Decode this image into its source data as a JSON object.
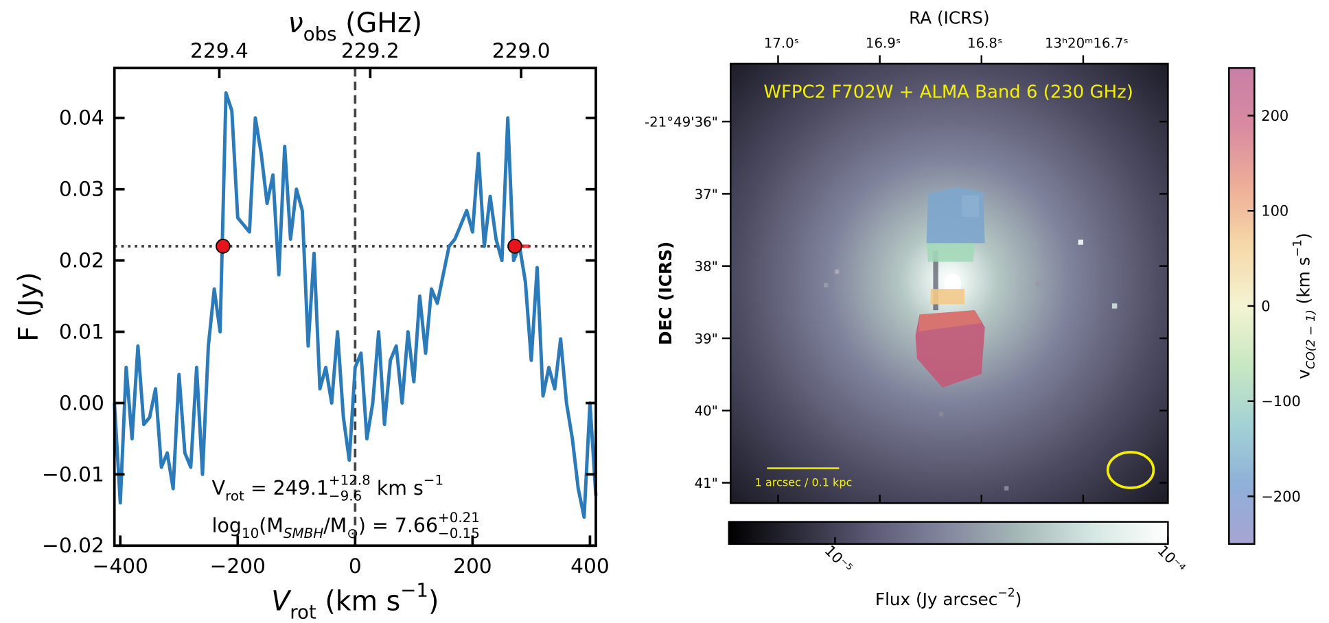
{
  "chart_data": [
    {
      "type": "line",
      "x_label": {
        "parts": [
          {
            "text": "V",
            "style": "italic"
          },
          {
            "text": "rot",
            "style": "sub"
          },
          {
            "text": " (km s"
          },
          {
            "text": "−1",
            "style": "sup"
          },
          {
            "text": ")"
          }
        ]
      },
      "y_label": {
        "parts": [
          {
            "text": "F (Jy)"
          }
        ]
      },
      "x2_label": {
        "parts": [
          {
            "text": "ν",
            "style": "italic"
          },
          {
            "text": "obs",
            "style": "sub"
          },
          {
            "text": " (GHz)"
          }
        ]
      },
      "xlim": [
        -410,
        410
      ],
      "xticks": [
        {
          "value": -400,
          "label": "−400"
        },
        {
          "value": -200,
          "label": "−200"
        },
        0,
        200,
        400
      ],
      "x2lim": [
        229.539,
        228.901
      ],
      "x2ticks": [
        229.4,
        229.2,
        {
          "value": 229.0,
          "label": "229.0"
        }
      ],
      "ylim": [
        -0.02,
        0.047
      ],
      "yticks": [
        {
          "value": -0.02,
          "label": "−0.02"
        },
        {
          "value": -0.01,
          "label": "−0.01"
        },
        {
          "value": 0,
          "label": "0.00"
        },
        0.01,
        0.02,
        0.03,
        0.04
      ],
      "x": [
        -410,
        -400,
        -390,
        -380,
        -370,
        -360,
        -350,
        -340,
        -330,
        -320,
        -310,
        -300,
        -290,
        -280,
        -270,
        -260,
        -250,
        -240,
        -230,
        -220,
        -210,
        -200,
        -190,
        -180,
        -170,
        -160,
        -150,
        -140,
        -130,
        -120,
        -110,
        -100,
        -90,
        -80,
        -70,
        -60,
        -50,
        -40,
        -30,
        -20,
        -10,
        0,
        10,
        20,
        30,
        40,
        50,
        60,
        70,
        80,
        90,
        100,
        110,
        120,
        130,
        140,
        150,
        160,
        170,
        180,
        190,
        200,
        210,
        220,
        230,
        240,
        250,
        260,
        270,
        280,
        290,
        300,
        310,
        320,
        330,
        340,
        350,
        360,
        370,
        380,
        390,
        400,
        410
      ],
      "series": [
        {
          "name": "Spectrum",
          "color": "#2b7bba",
          "values": [
            0.0,
            -0.014,
            0.005,
            -0.005,
            0.008,
            -0.003,
            -0.002,
            0.002,
            -0.009,
            -0.007,
            -0.012,
            0.004,
            -0.007,
            -0.009,
            0.005,
            -0.01,
            0.008,
            0.016,
            0.01,
            0.0435,
            0.041,
            0.026,
            0.025,
            0.024,
            0.04,
            0.035,
            0.028,
            0.032,
            0.018,
            0.036,
            0.023,
            0.03,
            0.027,
            0.008,
            0.021,
            0.002,
            0.005,
            0.0,
            0.01,
            -0.002,
            -0.008,
            0.005,
            0.007,
            -0.005,
            0.0,
            0.01,
            -0.003,
            0.006,
            0.008,
            0.0,
            0.01,
            0.003,
            0.015,
            0.007,
            0.016,
            0.014,
            0.018,
            0.022,
            0.023,
            0.025,
            0.027,
            0.024,
            0.035,
            0.022,
            0.029,
            0.023,
            0.02,
            0.04,
            0.02,
            0.022,
            0.017,
            0.006,
            0.019,
            0.001,
            0.005,
            0.002,
            0.009,
            0.0,
            -0.005,
            -0.012,
            -0.016,
            0.0,
            -0.013
          ]
        }
      ],
      "hline": 0.022,
      "vline": 0,
      "markers": [
        {
          "x": -225,
          "y": 0.022
        },
        {
          "x": 272,
          "y": 0.022,
          "xerr": 25
        }
      ],
      "marker_color": "#e8141c",
      "annotations": [
        {
          "parts": [
            {
              "text": "V"
            },
            {
              "text": "rot",
              "style": "sub"
            },
            {
              "text": " = 249.1"
            },
            {
              "text": "+12.8",
              "style": "sup"
            },
            {
              "text": "−9.6",
              "style": "sub"
            },
            {
              "text": " km s"
            },
            {
              "text": "−1",
              "style": "sup"
            }
          ]
        },
        {
          "parts": [
            {
              "text": "log"
            },
            {
              "text": "10",
              "style": "sub"
            },
            {
              "text": "(M"
            },
            {
              "text": "SMBH",
              "style": "sub italic"
            },
            {
              "text": "/M"
            },
            {
              "text": "⊙",
              "style": "sub"
            },
            {
              "text": ") = 7.66"
            },
            {
              "text": "+0.21",
              "style": "sup"
            },
            {
              "text": "−0.15",
              "style": "sub"
            }
          ]
        }
      ]
    },
    {
      "type": "image",
      "title": "WFPC2 F702W + ALMA Band 6 (230 GHz)",
      "scale_bar": "1 arcsec / 0.1 kpc",
      "x_label": "RA (ICRS)",
      "y_label": "DEC (ICRS)",
      "ra_ticks": [
        "17.0ˢ",
        "16.9ˢ",
        "16.8ˢ",
        "13ʰ20ᵐ16.7ˢ"
      ],
      "dec_ticks": [
        "-21°49'36\"",
        "37\"",
        "38\"",
        "39\"",
        "40\"",
        "41\""
      ],
      "colorbars": [
        {
          "orientation": "horizontal",
          "log": true,
          "clim": [
            4.8e-06,
            0.0001
          ],
          "ticks": [
            {
              "value": 1e-05,
              "label": "10⁻⁵"
            },
            {
              "value": 0.0001,
              "label": "10⁻⁴"
            }
          ],
          "cmap": [
            "#000000",
            "#2f2e3d",
            "#5e5c78",
            "#85889f",
            "#a6bab8",
            "#d6e8e3",
            "#ffffff"
          ],
          "label": {
            "parts": [
              {
                "text": "Flux (Jy arcsec"
              },
              {
                "text": "−2",
                "style": "sup"
              },
              {
                "text": ")"
              }
            ]
          }
        },
        {
          "orientation": "vertical",
          "log": false,
          "clim": [
            -250,
            250
          ],
          "ticks": [
            {
              "value": -200,
              "label": "−200"
            },
            {
              "value": -100,
              "label": "−100"
            },
            0,
            100,
            200
          ],
          "cmap": [
            "#a6a4d2",
            "#8fb0d8",
            "#a3d2d6",
            "#c8e8c2",
            "#f3f3d2",
            "#f6d9a9",
            "#eeae98",
            "#d98ba0",
            "#c97fa6"
          ],
          "label": {
            "parts": [
              {
                "text": "v"
              },
              {
                "text": "CO(2 − 1)",
                "style": "sub italic"
              },
              {
                "text": " (km s"
              },
              {
                "text": "−1",
                "style": "sup"
              },
              {
                "text": ")"
              }
            ]
          }
        }
      ]
    }
  ]
}
